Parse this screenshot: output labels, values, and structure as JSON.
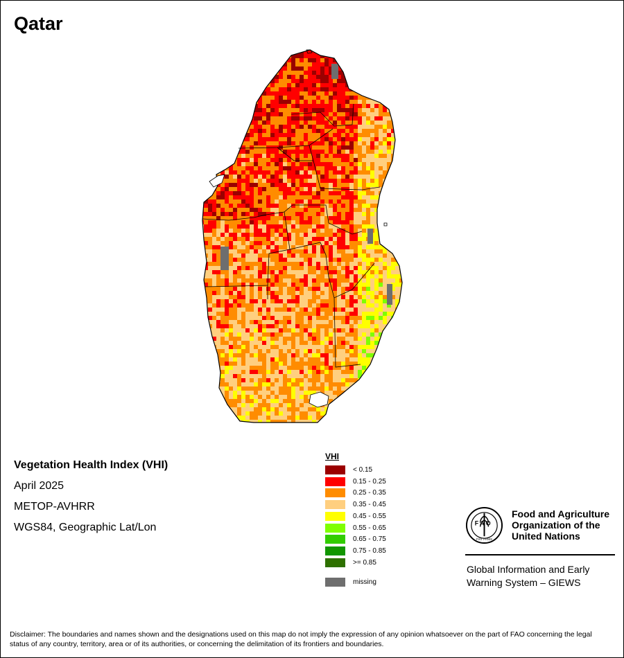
{
  "map": {
    "country": "Qatar"
  },
  "info": {
    "title": "Vegetation Health Index (VHI)",
    "period": "April 2025",
    "sensor": "METOP-AVHRR",
    "projection": "WGS84, Geographic Lat/Lon"
  },
  "legend": {
    "title": "VHI",
    "classes": [
      {
        "label": "< 0.15",
        "color": "#9b0000"
      },
      {
        "label": "0.15 - 0.25",
        "color": "#ff0000"
      },
      {
        "label": "0.25 - 0.35",
        "color": "#ff8c00"
      },
      {
        "label": "0.35 - 0.45",
        "color": "#ffcf7f"
      },
      {
        "label": "0.45 - 0.55",
        "color": "#ffff00"
      },
      {
        "label": "0.55 - 0.65",
        "color": "#7fff00"
      },
      {
        "label": "0.65 - 0.75",
        "color": "#32cd00"
      },
      {
        "label": "0.75 - 0.85",
        "color": "#129600"
      },
      {
        "label": ">= 0.85",
        "color": "#2e7000"
      }
    ],
    "missing": {
      "label": "missing",
      "color": "#6e6e6e"
    }
  },
  "organization": {
    "name_lines": [
      "Food and Agriculture",
      "Organization of the",
      "United Nations"
    ],
    "emblem_letters": "FAO",
    "emblem_motto": "FIAT PANIS",
    "system_lines": [
      "Global Information and Early",
      "Warning System – GIEWS"
    ]
  },
  "disclaimer": {
    "text": "Disclaimer: The boundaries and names shown and the designations used on this map do not imply the expression of any opinion whatsoever on the part of FAO concerning the legal status of any country, territory, area or of its authorities, or concerning the delimitation of its frontiers and boundaries."
  }
}
